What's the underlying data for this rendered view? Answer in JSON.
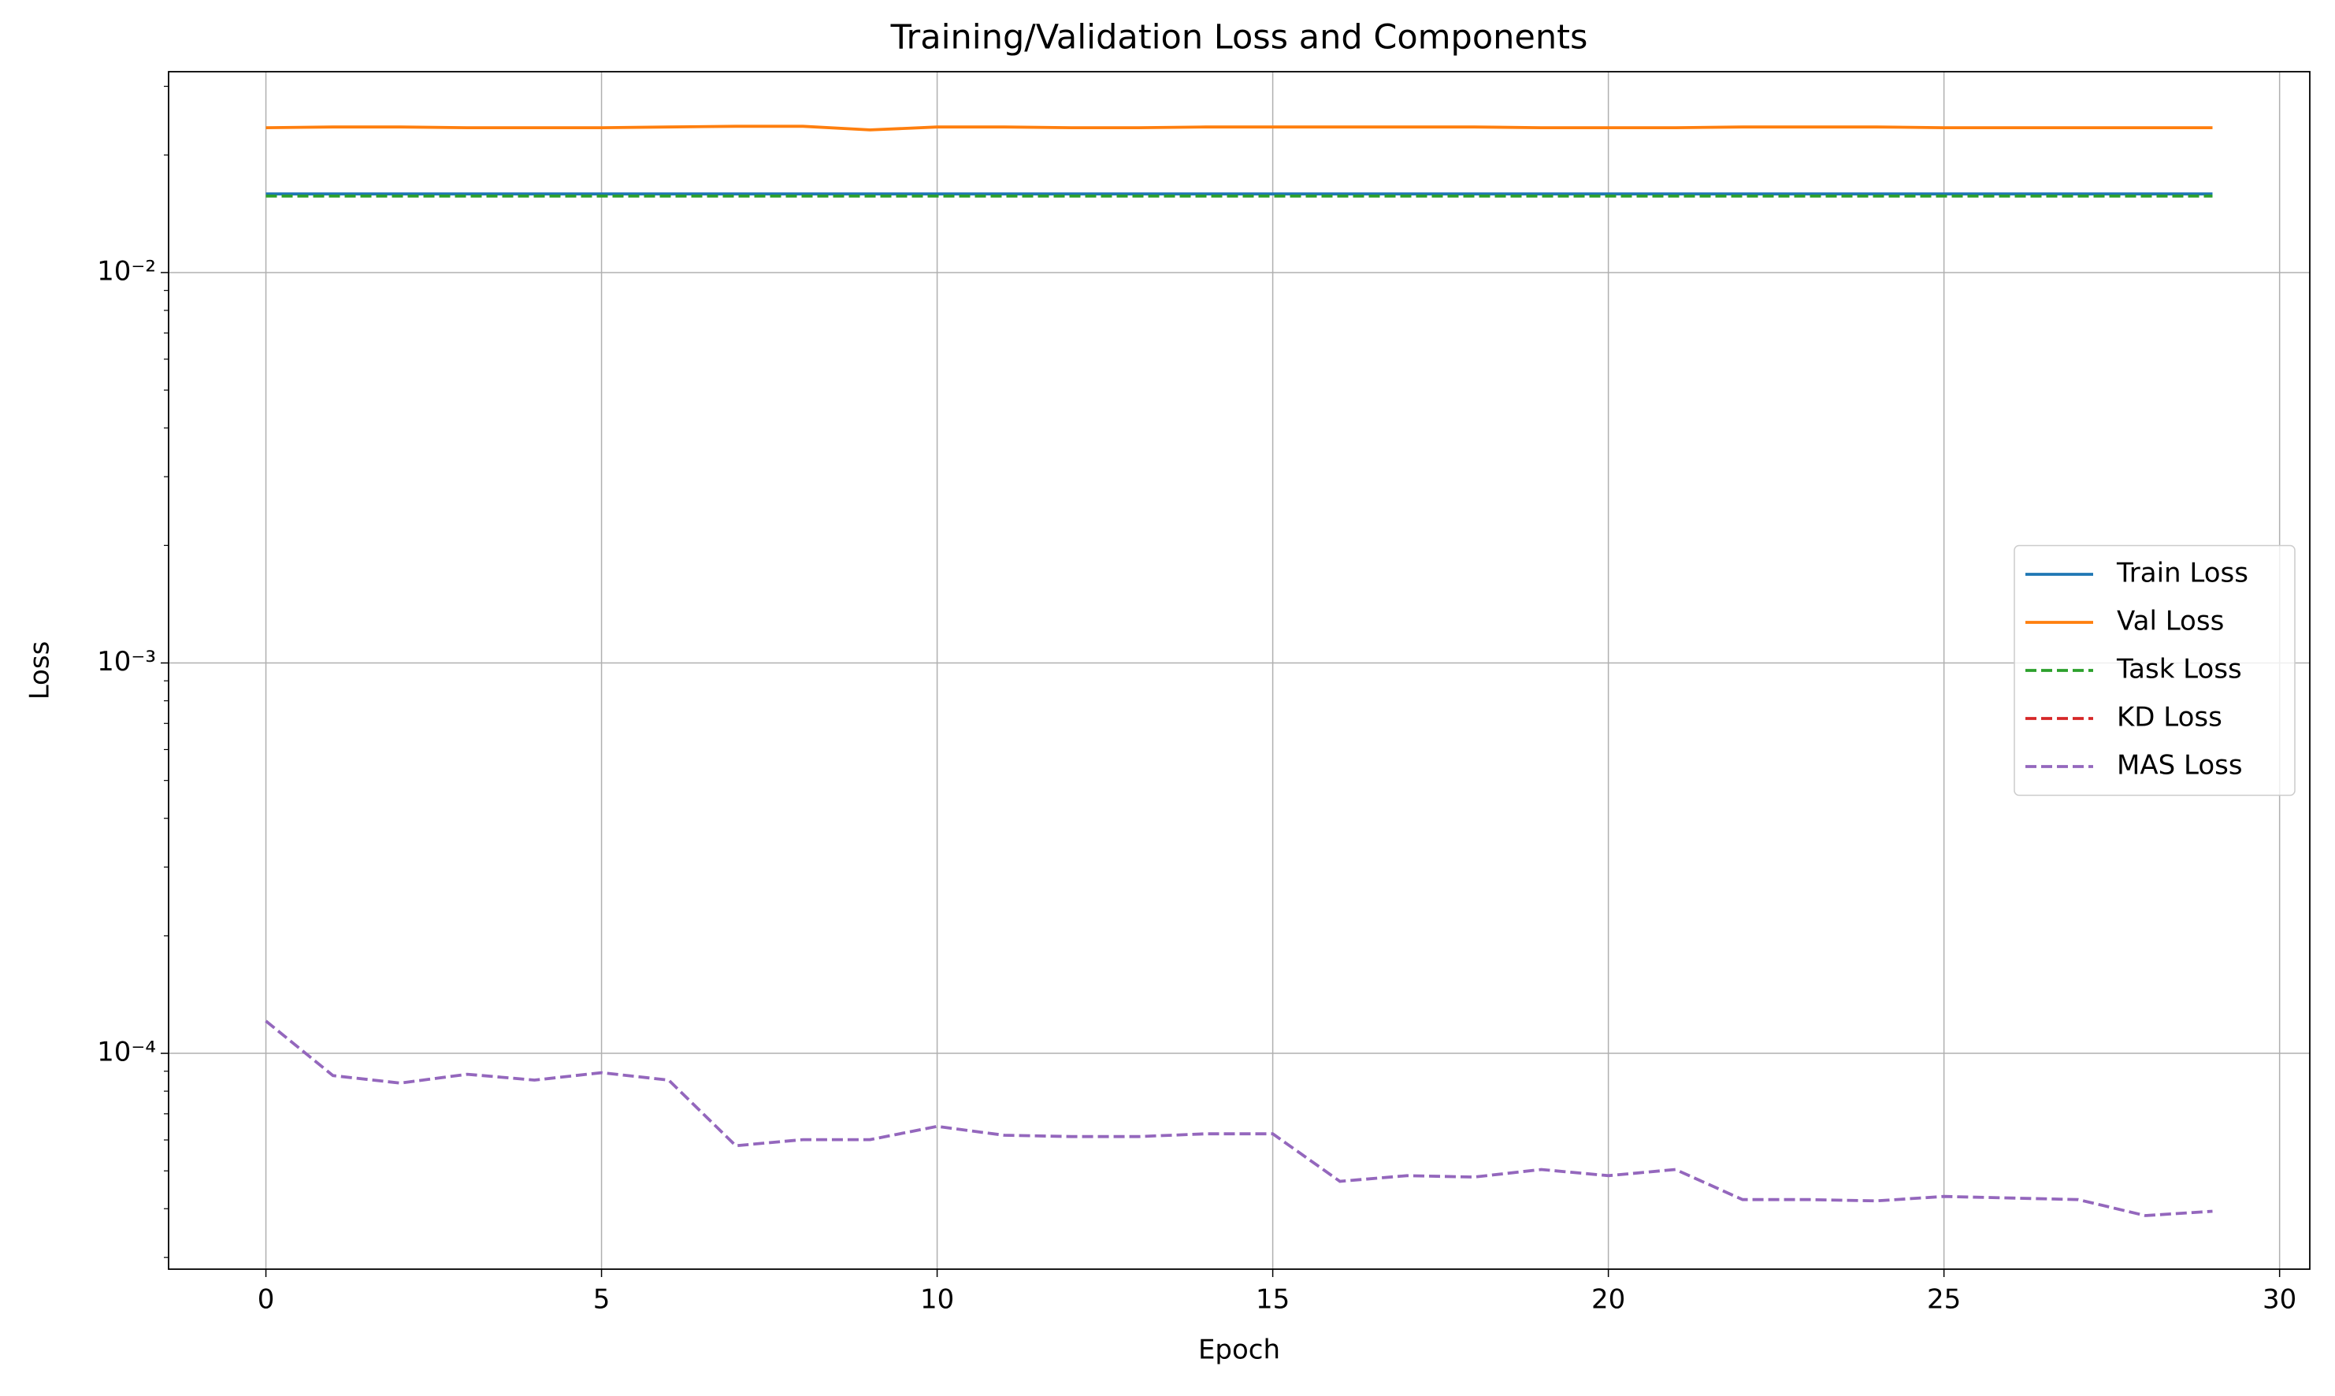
{
  "chart_data": {
    "type": "line",
    "title": "Training/Validation Loss and Components",
    "xlabel": "Epoch",
    "ylabel": "Loss",
    "x": [
      0,
      1,
      2,
      3,
      4,
      5,
      6,
      7,
      8,
      9,
      10,
      11,
      12,
      13,
      14,
      15,
      16,
      17,
      18,
      19,
      20,
      21,
      22,
      23,
      24,
      25,
      26,
      27,
      28,
      29
    ],
    "series": [
      {
        "name": "Train Loss",
        "color": "#1f77b4",
        "linestyle": "solid",
        "values": [
          0.0159,
          0.0159,
          0.0159,
          0.0159,
          0.0159,
          0.0159,
          0.0159,
          0.0159,
          0.0159,
          0.0159,
          0.0159,
          0.0159,
          0.0159,
          0.0159,
          0.0159,
          0.0159,
          0.0159,
          0.0159,
          0.0159,
          0.0159,
          0.0159,
          0.0159,
          0.0159,
          0.0159,
          0.0159,
          0.0159,
          0.0159,
          0.0159,
          0.0159,
          0.0159
        ]
      },
      {
        "name": "Val Loss",
        "color": "#ff7f0e",
        "linestyle": "solid",
        "values": [
          0.0235,
          0.0236,
          0.0236,
          0.0235,
          0.0235,
          0.0235,
          0.0236,
          0.0237,
          0.0237,
          0.0232,
          0.0236,
          0.0236,
          0.0235,
          0.0235,
          0.0236,
          0.0236,
          0.0236,
          0.0236,
          0.0236,
          0.0235,
          0.0235,
          0.0235,
          0.0236,
          0.0236,
          0.0236,
          0.0235,
          0.0235,
          0.0235,
          0.0235,
          0.0235
        ]
      },
      {
        "name": "Task Loss",
        "color": "#2ca02c",
        "linestyle": "dashed",
        "values": [
          0.0157,
          0.0157,
          0.0157,
          0.0157,
          0.0157,
          0.0157,
          0.0157,
          0.0157,
          0.0157,
          0.0157,
          0.0157,
          0.0157,
          0.0157,
          0.0157,
          0.0157,
          0.0157,
          0.0157,
          0.0157,
          0.0157,
          0.0157,
          0.0157,
          0.0157,
          0.0157,
          0.0157,
          0.0157,
          0.0157,
          0.0157,
          0.0157,
          0.0157,
          0.0157
        ]
      },
      {
        "name": "KD Loss",
        "color": "#d62728",
        "linestyle": "dashed",
        "values": [
          null,
          null,
          null,
          null,
          null,
          null,
          null,
          null,
          null,
          null,
          null,
          null,
          null,
          null,
          null,
          null,
          null,
          null,
          null,
          null,
          null,
          null,
          null,
          null,
          null,
          null,
          null,
          null,
          null,
          null
        ]
      },
      {
        "name": "MAS Loss",
        "color": "#9467bd",
        "linestyle": "dashed",
        "values": [
          0.000121,
          8.77e-05,
          8.39e-05,
          8.84e-05,
          8.54e-05,
          8.92e-05,
          8.54e-05,
          5.8e-05,
          6.01e-05,
          6.01e-05,
          6.5e-05,
          6.17e-05,
          6.12e-05,
          6.12e-05,
          6.22e-05,
          6.22e-05,
          4.7e-05,
          4.86e-05,
          4.82e-05,
          5.04e-05,
          4.86e-05,
          5.04e-05,
          4.22e-05,
          4.22e-05,
          4.19e-05,
          4.3e-05,
          4.26e-05,
          4.22e-05,
          3.84e-05,
          3.94e-05
        ]
      }
    ],
    "xlim": [
      -1.45,
      30.45
    ],
    "xticks": [
      0,
      5,
      10,
      15,
      20,
      25,
      30
    ],
    "ylim": [
      2.8e-05,
      0.0327
    ],
    "ylog": true,
    "yticks": [
      {
        "value": 0.0001,
        "label": "10⁻⁴"
      },
      {
        "value": 0.001,
        "label": "10⁻³"
      },
      {
        "value": 0.01,
        "label": "10⁻²"
      }
    ],
    "yminorticks": [
      3e-05,
      4e-05,
      5e-05,
      6e-05,
      7e-05,
      8e-05,
      9e-05,
      0.0002,
      0.0003,
      0.0004,
      0.0005,
      0.0006,
      0.0007,
      0.0008,
      0.0009,
      0.002,
      0.003,
      0.004,
      0.005,
      0.006,
      0.007,
      0.008,
      0.009,
      0.02,
      0.03
    ],
    "grid": true,
    "legend": "center right"
  }
}
